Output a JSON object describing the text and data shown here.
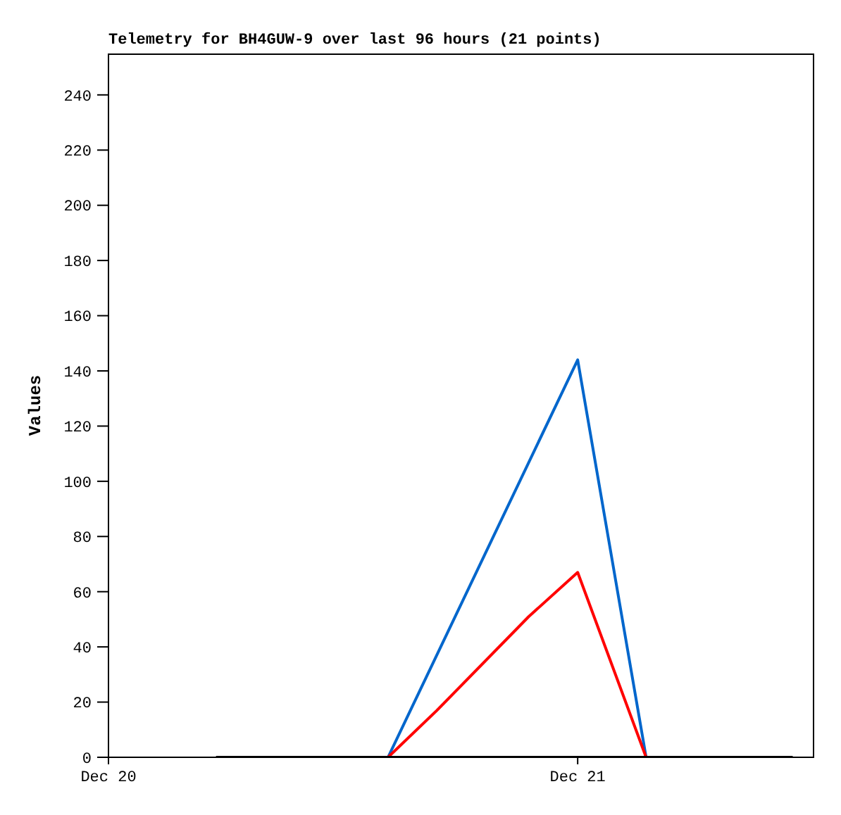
{
  "chart_data": {
    "type": "line",
    "title": "Telemetry for BH4GUW-9 over last 96 hours (21 points)",
    "ylabel": "Values",
    "xlim": [
      "--12-20T00:00",
      "--12-21T12:06"
    ],
    "xticks": [
      {
        "value": "--12-20",
        "label": "Dec 20"
      },
      {
        "value": "--12-21",
        "label": "Dec 21"
      }
    ],
    "ylim": [
      0,
      255
    ],
    "yticks": [
      0,
      20,
      40,
      60,
      80,
      100,
      120,
      140,
      160,
      180,
      200,
      220,
      240
    ],
    "marker": "none",
    "line_style": "solid",
    "series": [
      {
        "color": "#0066cc",
        "x": [
          "--12-20T14:18",
          "--12-21T00:00",
          "--12-21T03:30"
        ],
        "values": [
          0,
          144,
          0
        ]
      },
      {
        "color": "#ff0000",
        "x": [
          "--12-20T14:18",
          "--12-20T16:48",
          "--12-20T21:30",
          "--12-21T00:00",
          "--12-21T03:30"
        ],
        "values": [
          0,
          17,
          51,
          67,
          0
        ]
      },
      {
        "color": "#000000",
        "x": [
          "--12-20T05:30",
          "--12-20T14:18",
          "--12-21T00:00",
          "--12-21T03:30",
          "--12-21T11:00"
        ],
        "values": [
          0,
          0,
          0,
          0,
          0
        ]
      }
    ]
  }
}
